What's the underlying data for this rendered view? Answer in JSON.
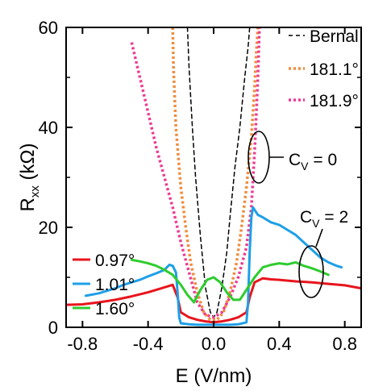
{
  "chart_data": {
    "type": "line",
    "xlabel": "E (V/nm)",
    "ylabel_main": "R",
    "ylabel_sub": "xx",
    "ylabel_unit": " (kΩ)",
    "xlim": [
      -0.9,
      0.9
    ],
    "ylim": [
      0,
      60
    ],
    "xticks": [
      -0.8,
      -0.4,
      0.0,
      0.4,
      0.8
    ],
    "xtick_labels": [
      "-0.8",
      "-0.4",
      "0.0",
      "0.4",
      "0.8"
    ],
    "yticks": [
      0,
      20,
      40,
      60
    ],
    "ytick_labels": [
      "0",
      "20",
      "40",
      "60"
    ],
    "legend_left": [
      {
        "name": "0.97°",
        "color": "#e8141c"
      },
      {
        "name": "1.01°",
        "color": "#1e9fe8"
      },
      {
        "name": "1.60°",
        "color": "#2ecc2e"
      }
    ],
    "legend_right": [
      {
        "name": "Bernal",
        "color": "#000000",
        "dash": "dash"
      },
      {
        "name": "181.1°",
        "color": "#f08c3c",
        "dash": "dot"
      },
      {
        "name": "181.9°",
        "color": "#ee3a93",
        "dash": "dot"
      }
    ],
    "annotations": [
      {
        "main": "C",
        "sub": "V",
        "rest": " = 0"
      },
      {
        "main": "C",
        "sub": "V",
        "rest": " = 2"
      }
    ],
    "series": [
      {
        "name": "Bernal",
        "color": "#000000",
        "dash": "dash",
        "width": 1.5,
        "x": [
          -0.16,
          -0.15,
          -0.13,
          -0.11,
          -0.08,
          -0.05,
          -0.02,
          0.0,
          0.02,
          0.05,
          0.08,
          0.1,
          0.13,
          0.16,
          0.19,
          0.21,
          0.22
        ],
        "y": [
          60,
          52,
          40,
          30,
          18,
          8,
          3,
          2,
          3,
          8,
          15,
          22,
          32,
          40,
          50,
          56,
          60
        ]
      },
      {
        "name": "181.1°",
        "color": "#f08c3c",
        "dash": "dot",
        "width": 3.5,
        "x": [
          -0.25,
          -0.245,
          -0.23,
          -0.2,
          -0.17,
          -0.14,
          -0.1,
          -0.06,
          -0.02,
          0.02,
          0.06,
          0.1,
          0.14,
          0.17,
          0.2,
          0.23,
          0.25,
          0.26,
          0.27
        ],
        "y": [
          60,
          52,
          40,
          28,
          20,
          13,
          7,
          3,
          1.5,
          1.5,
          3,
          7,
          13,
          20,
          28,
          38,
          48,
          55,
          60
        ]
      },
      {
        "name": "181.9°",
        "color": "#ee3a93",
        "dash": "dot",
        "width": 3.5,
        "x": [
          -0.5,
          -0.45,
          -0.4,
          -0.35,
          -0.3,
          -0.25,
          -0.2,
          -0.15,
          -0.1,
          -0.05,
          0.0,
          0.05,
          0.1,
          0.15,
          0.2,
          0.23,
          0.25,
          0.27,
          0.28
        ],
        "y": [
          57,
          50,
          43,
          36,
          30,
          24,
          17,
          11,
          5,
          2.5,
          2,
          3,
          6,
          10,
          16,
          24,
          35,
          50,
          60
        ]
      },
      {
        "name": "0.97°",
        "color": "#e8141c",
        "dash": "solid",
        "width": 3,
        "x": [
          -0.9,
          -0.8,
          -0.7,
          -0.6,
          -0.5,
          -0.4,
          -0.3,
          -0.25,
          -0.22,
          -0.2,
          -0.15,
          -0.1,
          -0.05,
          0.0,
          0.05,
          0.1,
          0.15,
          0.2,
          0.22,
          0.25,
          0.3,
          0.35,
          0.4,
          0.5,
          0.6,
          0.7,
          0.8,
          0.9
        ],
        "y": [
          4.5,
          4.6,
          5,
          5.5,
          6.2,
          7,
          8,
          8.5,
          6,
          3,
          2,
          1.5,
          1.2,
          1,
          1.2,
          1.5,
          2,
          3,
          6,
          9,
          9.8,
          9.6,
          9.5,
          9.2,
          9.0,
          8.7,
          8.4,
          7.8
        ]
      },
      {
        "name": "1.01°",
        "color": "#1e9fe8",
        "dash": "solid",
        "width": 3,
        "x": [
          -0.78,
          -0.7,
          -0.65,
          -0.6,
          -0.55,
          -0.5,
          -0.45,
          -0.4,
          -0.35,
          -0.3,
          -0.27,
          -0.25,
          -0.23,
          -0.22,
          -0.21,
          -0.2,
          -0.15,
          -0.1,
          -0.05,
          0.0,
          0.05,
          0.1,
          0.15,
          0.2,
          0.21,
          0.22,
          0.23,
          0.24,
          0.25,
          0.27,
          0.3,
          0.35,
          0.4,
          0.45,
          0.5,
          0.55,
          0.6,
          0.65,
          0.7,
          0.75,
          0.78
        ],
        "y": [
          6.3,
          6.8,
          7.3,
          7.8,
          8.5,
          9,
          9.5,
          10.2,
          10.8,
          11.5,
          12.5,
          12.3,
          11,
          7,
          2,
          0.8,
          0.6,
          0.5,
          0.5,
          0.5,
          0.5,
          0.5,
          0.6,
          1,
          5,
          15,
          22,
          24,
          23.5,
          22.5,
          22,
          21,
          20.5,
          19.5,
          18.5,
          17,
          15.5,
          14,
          13,
          12.3,
          12
        ]
      },
      {
        "name": "1.60°",
        "color": "#2ecc2e",
        "dash": "solid",
        "width": 3,
        "x": [
          -0.5,
          -0.45,
          -0.4,
          -0.35,
          -0.3,
          -0.25,
          -0.2,
          -0.16,
          -0.12,
          -0.08,
          -0.04,
          0.0,
          0.04,
          0.08,
          0.12,
          0.16,
          0.2,
          0.25,
          0.3,
          0.35,
          0.4,
          0.45,
          0.5,
          0.55,
          0.6,
          0.65,
          0.7
        ],
        "y": [
          13.5,
          13.2,
          12.8,
          12.3,
          11.5,
          10.5,
          8.5,
          6.5,
          5,
          7.5,
          9.5,
          10,
          9,
          7,
          5.5,
          5.5,
          7.5,
          10,
          12,
          12.5,
          12.8,
          12.6,
          13,
          12.3,
          11.8,
          11.2,
          10.5
        ]
      }
    ]
  }
}
